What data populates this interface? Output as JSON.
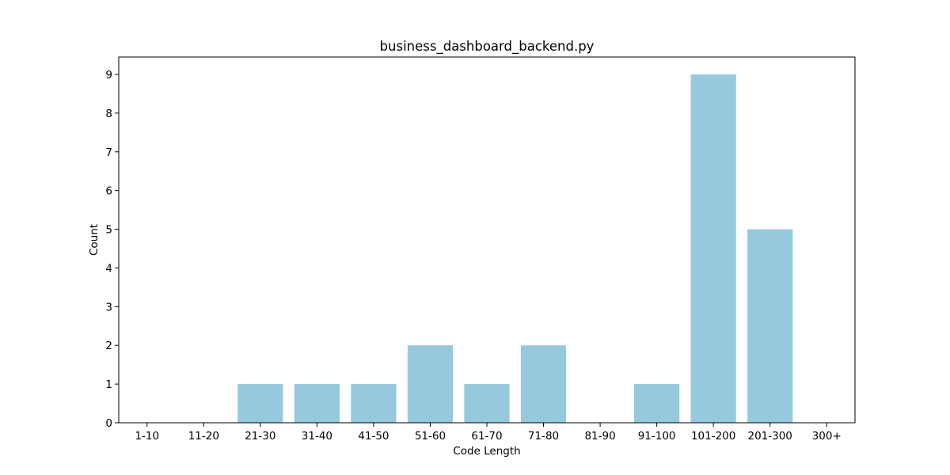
{
  "chart_data": {
    "type": "bar",
    "title": "business_dashboard_backend.py",
    "xlabel": "Code Length",
    "ylabel": "Count",
    "categories": [
      "1-10",
      "11-20",
      "21-30",
      "31-40",
      "41-50",
      "51-60",
      "61-70",
      "71-80",
      "81-90",
      "91-100",
      "101-200",
      "201-300",
      "300+"
    ],
    "values": [
      0,
      0,
      1,
      1,
      1,
      2,
      1,
      2,
      0,
      1,
      9,
      5,
      0
    ],
    "ylim": [
      0,
      9.45
    ],
    "yticks": [
      0,
      1,
      2,
      3,
      4,
      5,
      6,
      7,
      8,
      9
    ],
    "grid": false,
    "bar_color": "#96c9de",
    "axis_color": "#000000"
  }
}
